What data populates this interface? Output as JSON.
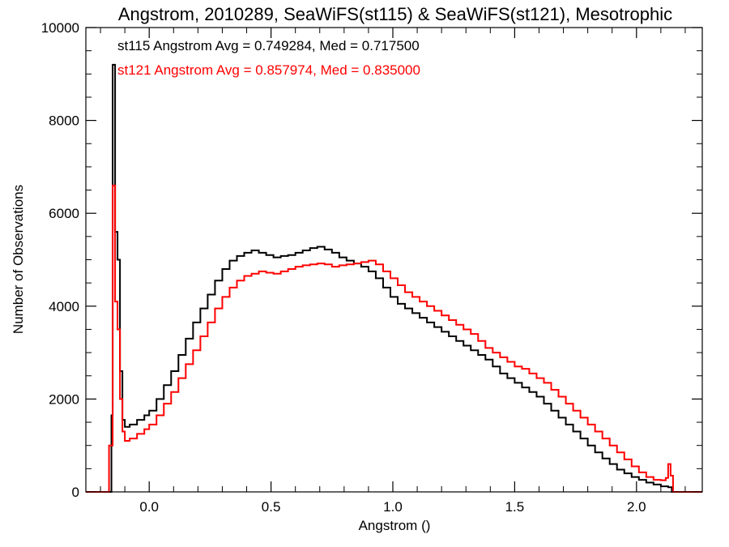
{
  "chart_data": {
    "type": "line",
    "step": true,
    "title": "Angstrom, 2010289, SeaWiFS(st115) & SeaWiFS(st121), Mesotrophic",
    "xlabel": "Angstrom ()",
    "ylabel": "Number of Observations",
    "xlim": [
      -0.26,
      2.27
    ],
    "ylim": [
      0,
      10000
    ],
    "xticks": [
      0.0,
      0.5,
      1.0,
      1.5,
      2.0
    ],
    "xtick_labels": [
      "0.0",
      "0.5",
      "1.0",
      "1.5",
      "2.0"
    ],
    "yticks": [
      0,
      2000,
      4000,
      6000,
      8000,
      10000
    ],
    "ytick_labels": [
      "0",
      "2000",
      "4000",
      "6000",
      "8000",
      "10000"
    ],
    "grid": false,
    "annotations": [
      {
        "text": "st115 Angstrom Avg = 0.749284, Med = 0.717500",
        "color": "#000000"
      },
      {
        "text": "st121 Angstrom Avg = 0.857974, Med = 0.835000",
        "color": "#ff0000"
      }
    ],
    "series": [
      {
        "color": "#000000",
        "points": [
          [
            -0.26,
            0
          ],
          [
            -0.16,
            0
          ],
          [
            -0.155,
            1650
          ],
          [
            -0.15,
            9200
          ],
          [
            -0.14,
            5600
          ],
          [
            -0.13,
            5000
          ],
          [
            -0.12,
            2600
          ],
          [
            -0.11,
            1550
          ],
          [
            -0.1,
            1400
          ],
          [
            -0.08,
            1450
          ],
          [
            -0.05,
            1550
          ],
          [
            -0.02,
            1650
          ],
          [
            0.0,
            1750
          ],
          [
            0.03,
            2000
          ],
          [
            0.06,
            2300
          ],
          [
            0.09,
            2600
          ],
          [
            0.12,
            2950
          ],
          [
            0.15,
            3300
          ],
          [
            0.18,
            3650
          ],
          [
            0.21,
            3950
          ],
          [
            0.24,
            4250
          ],
          [
            0.27,
            4550
          ],
          [
            0.3,
            4800
          ],
          [
            0.33,
            4980
          ],
          [
            0.36,
            5080
          ],
          [
            0.39,
            5150
          ],
          [
            0.42,
            5200
          ],
          [
            0.45,
            5150
          ],
          [
            0.48,
            5100
          ],
          [
            0.51,
            5050
          ],
          [
            0.54,
            5080
          ],
          [
            0.57,
            5100
          ],
          [
            0.6,
            5150
          ],
          [
            0.63,
            5200
          ],
          [
            0.66,
            5250
          ],
          [
            0.69,
            5280
          ],
          [
            0.72,
            5220
          ],
          [
            0.75,
            5150
          ],
          [
            0.78,
            5050
          ],
          [
            0.81,
            4980
          ],
          [
            0.84,
            4920
          ],
          [
            0.87,
            4850
          ],
          [
            0.9,
            4750
          ],
          [
            0.93,
            4600
          ],
          [
            0.96,
            4400
          ],
          [
            0.99,
            4200
          ],
          [
            1.02,
            4050
          ],
          [
            1.05,
            3950
          ],
          [
            1.08,
            3850
          ],
          [
            1.11,
            3750
          ],
          [
            1.14,
            3650
          ],
          [
            1.17,
            3550
          ],
          [
            1.2,
            3450
          ],
          [
            1.23,
            3350
          ],
          [
            1.26,
            3250
          ],
          [
            1.29,
            3150
          ],
          [
            1.32,
            3050
          ],
          [
            1.35,
            2950
          ],
          [
            1.38,
            2850
          ],
          [
            1.41,
            2700
          ],
          [
            1.44,
            2550
          ],
          [
            1.47,
            2450
          ],
          [
            1.5,
            2350
          ],
          [
            1.53,
            2250
          ],
          [
            1.56,
            2150
          ],
          [
            1.59,
            2050
          ],
          [
            1.62,
            1900
          ],
          [
            1.65,
            1750
          ],
          [
            1.68,
            1600
          ],
          [
            1.71,
            1450
          ],
          [
            1.74,
            1300
          ],
          [
            1.77,
            1150
          ],
          [
            1.8,
            1000
          ],
          [
            1.83,
            850
          ],
          [
            1.86,
            720
          ],
          [
            1.89,
            600
          ],
          [
            1.92,
            480
          ],
          [
            1.95,
            400
          ],
          [
            1.98,
            320
          ],
          [
            2.01,
            260
          ],
          [
            2.04,
            200
          ],
          [
            2.07,
            160
          ],
          [
            2.1,
            120
          ],
          [
            2.13,
            100
          ],
          [
            2.145,
            0
          ],
          [
            2.27,
            0
          ]
        ]
      },
      {
        "color": "#ff0000",
        "points": [
          [
            -0.26,
            0
          ],
          [
            -0.17,
            0
          ],
          [
            -0.165,
            1000
          ],
          [
            -0.15,
            6600
          ],
          [
            -0.14,
            4100
          ],
          [
            -0.13,
            3500
          ],
          [
            -0.12,
            2000
          ],
          [
            -0.11,
            1300
          ],
          [
            -0.1,
            1100
          ],
          [
            -0.08,
            1150
          ],
          [
            -0.05,
            1250
          ],
          [
            -0.02,
            1350
          ],
          [
            0.0,
            1450
          ],
          [
            0.03,
            1650
          ],
          [
            0.06,
            1900
          ],
          [
            0.09,
            2150
          ],
          [
            0.12,
            2450
          ],
          [
            0.15,
            2750
          ],
          [
            0.18,
            3050
          ],
          [
            0.21,
            3350
          ],
          [
            0.24,
            3650
          ],
          [
            0.27,
            3950
          ],
          [
            0.3,
            4200
          ],
          [
            0.33,
            4400
          ],
          [
            0.36,
            4550
          ],
          [
            0.39,
            4650
          ],
          [
            0.42,
            4700
          ],
          [
            0.45,
            4750
          ],
          [
            0.48,
            4720
          ],
          [
            0.51,
            4700
          ],
          [
            0.54,
            4750
          ],
          [
            0.57,
            4800
          ],
          [
            0.6,
            4850
          ],
          [
            0.63,
            4880
          ],
          [
            0.66,
            4900
          ],
          [
            0.69,
            4920
          ],
          [
            0.72,
            4900
          ],
          [
            0.75,
            4850
          ],
          [
            0.78,
            4880
          ],
          [
            0.81,
            4900
          ],
          [
            0.84,
            4920
          ],
          [
            0.87,
            4950
          ],
          [
            0.9,
            4980
          ],
          [
            0.93,
            4900
          ],
          [
            0.96,
            4750
          ],
          [
            0.99,
            4600
          ],
          [
            1.02,
            4450
          ],
          [
            1.05,
            4300
          ],
          [
            1.08,
            4200
          ],
          [
            1.11,
            4100
          ],
          [
            1.14,
            4000
          ],
          [
            1.17,
            3900
          ],
          [
            1.2,
            3800
          ],
          [
            1.23,
            3700
          ],
          [
            1.26,
            3600
          ],
          [
            1.29,
            3500
          ],
          [
            1.32,
            3400
          ],
          [
            1.35,
            3250
          ],
          [
            1.38,
            3100
          ],
          [
            1.41,
            3000
          ],
          [
            1.44,
            2900
          ],
          [
            1.47,
            2800
          ],
          [
            1.5,
            2700
          ],
          [
            1.53,
            2650
          ],
          [
            1.56,
            2550
          ],
          [
            1.59,
            2450
          ],
          [
            1.62,
            2350
          ],
          [
            1.65,
            2200
          ],
          [
            1.68,
            2050
          ],
          [
            1.71,
            1900
          ],
          [
            1.74,
            1750
          ],
          [
            1.77,
            1600
          ],
          [
            1.8,
            1450
          ],
          [
            1.83,
            1300
          ],
          [
            1.86,
            1150
          ],
          [
            1.89,
            1000
          ],
          [
            1.92,
            850
          ],
          [
            1.95,
            700
          ],
          [
            1.98,
            550
          ],
          [
            2.01,
            420
          ],
          [
            2.04,
            320
          ],
          [
            2.07,
            260
          ],
          [
            2.1,
            250
          ],
          [
            2.12,
            300
          ],
          [
            2.13,
            600
          ],
          [
            2.14,
            350
          ],
          [
            2.15,
            0
          ],
          [
            2.27,
            0
          ]
        ]
      }
    ]
  }
}
